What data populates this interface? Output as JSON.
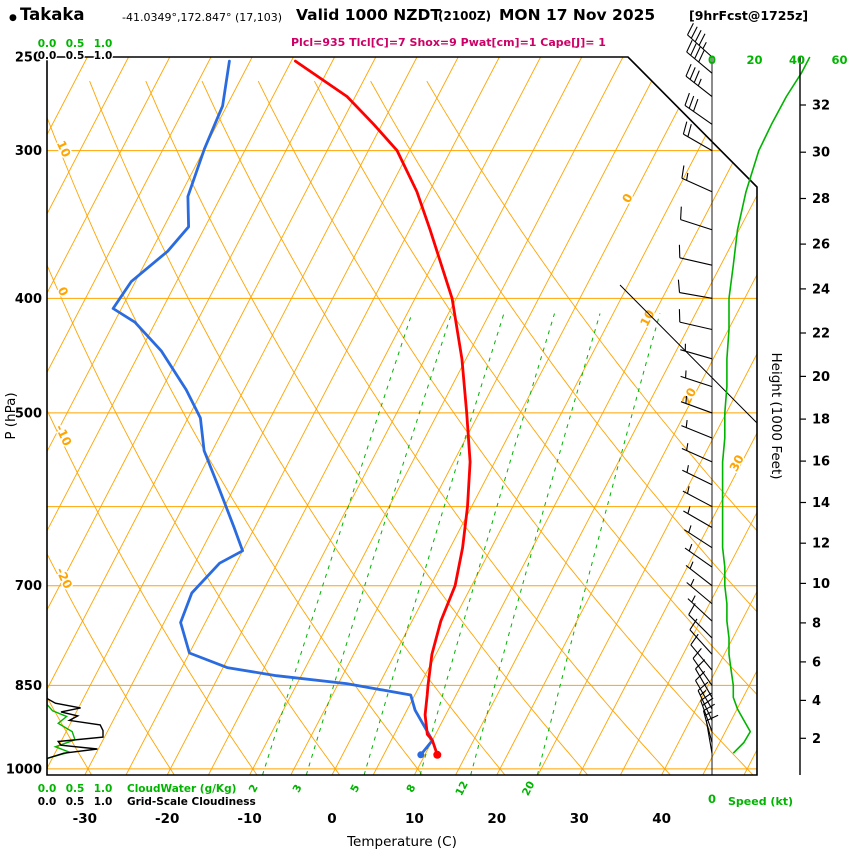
{
  "header": {
    "bullet": "●",
    "station": "Takaka",
    "coords": "-41.0349°,172.847° (17,103)",
    "valid_main": "Valid 1000 NZDT",
    "valid_z": "(2100Z)",
    "valid_date": "MON 17 Nov 2025",
    "valid_fcst": "[9hrFcst@1725z]",
    "params": "Plcl=935 Tlcl[C]=7 Shox=9 Pwat[cm]=1 Cape[J]= 1"
  },
  "colors": {
    "grid_orange": "#FFA400",
    "green": "#00B400",
    "temperature_red": "#FF0000",
    "dewpoint_blue": "#2B6BE0",
    "params_magenta": "#CC0066",
    "black": "#000000"
  },
  "chart_data": {
    "type": "skew_t_log_p_sounding",
    "axes": {
      "pressure_label": "P (hPa)",
      "pressure_ticks": [
        250,
        300,
        400,
        500,
        700,
        850,
        1000
      ],
      "pressure_range_hpa": [
        250,
        1012
      ],
      "isobar_lines_hpa": [
        300,
        400,
        500,
        600,
        700,
        850,
        1000
      ],
      "temperature_label": "Temperature (C)",
      "temperature_ticks_c": [
        -30,
        -20,
        -10,
        0,
        10,
        20,
        30,
        40
      ],
      "temperature_at_surface_range_c": [
        -34.6,
        51.6
      ],
      "skew_dx_per_dy": 0.52,
      "height_label": "Height (1000 Feet)",
      "height_ticks_kft": [
        2,
        4,
        6,
        8,
        10,
        12,
        14,
        16,
        18,
        20,
        22,
        24,
        26,
        28,
        30,
        32
      ],
      "speed_label": "Speed (kt)",
      "speed_ticks_kt": [
        0,
        20,
        40,
        60
      ],
      "speed_bottom_tick": "0",
      "cloud_scale_ticks": [
        "0.0",
        "0.5",
        "1.0"
      ],
      "cloudwater_label": "CloudWater (g/Kg)",
      "cloudiness_label": "Grid-Scale Cloudiness"
    },
    "grid": {
      "isotherm_step_c": 5,
      "isotherm_label_values": [
        0,
        10,
        20,
        30
      ],
      "dry_adiabat_values_c": [
        -30,
        -20,
        -10,
        0,
        10,
        20,
        30,
        40,
        50,
        60,
        70,
        80
      ],
      "dry_adiabat_label_values": [
        10,
        0,
        -10,
        -20
      ],
      "mixing_ratio_lines_gkg": [
        2,
        3,
        5,
        8,
        12,
        20
      ]
    },
    "temperature_profile_c": [
      [
        973,
        11.5
      ],
      [
        946,
        10
      ],
      [
        935,
        9
      ],
      [
        900,
        7.5
      ],
      [
        866,
        6.5
      ],
      [
        850,
        6
      ],
      [
        800,
        4.5
      ],
      [
        750,
        3.5
      ],
      [
        700,
        3
      ],
      [
        650,
        1.5
      ],
      [
        600,
        -0.5
      ],
      [
        550,
        -3
      ],
      [
        500,
        -6.5
      ],
      [
        450,
        -10.5
      ],
      [
        400,
        -15.5
      ],
      [
        350,
        -22.5
      ],
      [
        325,
        -26.5
      ],
      [
        300,
        -31.5
      ],
      [
        285,
        -36
      ],
      [
        270,
        -41
      ],
      [
        252,
        -49.5
      ]
    ],
    "dewpoint_profile_c": [
      [
        973,
        9.5
      ],
      [
        946,
        10
      ],
      [
        892,
        6
      ],
      [
        866,
        4.5
      ],
      [
        847,
        -4
      ],
      [
        834,
        -13
      ],
      [
        821,
        -19.5
      ],
      [
        798,
        -25
      ],
      [
        752,
        -28
      ],
      [
        710,
        -28.5
      ],
      [
        670,
        -27
      ],
      [
        654,
        -25
      ],
      [
        625,
        -27.5
      ],
      [
        577,
        -32
      ],
      [
        538,
        -36
      ],
      [
        505,
        -38.5
      ],
      [
        478,
        -42
      ],
      [
        443,
        -47.5
      ],
      [
        419,
        -52.5
      ],
      [
        408,
        -56
      ],
      [
        387,
        -55.5
      ],
      [
        365,
        -53
      ],
      [
        348,
        -52
      ],
      [
        328,
        -54
      ],
      [
        299,
        -55
      ],
      [
        275,
        -55.5
      ],
      [
        252,
        -57.5
      ]
    ],
    "wind_profile_kt": [
      [
        970,
        350,
        10
      ],
      [
        950,
        345,
        15
      ],
      [
        930,
        340,
        18
      ],
      [
        910,
        335,
        15
      ],
      [
        890,
        330,
        12
      ],
      [
        870,
        330,
        10
      ],
      [
        850,
        325,
        10
      ],
      [
        825,
        320,
        9
      ],
      [
        800,
        318,
        8
      ],
      [
        775,
        315,
        8
      ],
      [
        750,
        313,
        7
      ],
      [
        725,
        310,
        7
      ],
      [
        700,
        308,
        6
      ],
      [
        675,
        305,
        6
      ],
      [
        650,
        303,
        5
      ],
      [
        625,
        300,
        5
      ],
      [
        600,
        298,
        5
      ],
      [
        575,
        296,
        5
      ],
      [
        550,
        294,
        5
      ],
      [
        525,
        292,
        6
      ],
      [
        500,
        290,
        6
      ],
      [
        475,
        288,
        7
      ],
      [
        450,
        286,
        7
      ],
      [
        425,
        283,
        8
      ],
      [
        400,
        280,
        8
      ],
      [
        375,
        283,
        10
      ],
      [
        350,
        288,
        12
      ],
      [
        325,
        294,
        16
      ],
      [
        300,
        300,
        22
      ],
      [
        285,
        305,
        28
      ],
      [
        270,
        308,
        35
      ],
      [
        258,
        310,
        42
      ],
      [
        250,
        312,
        46
      ]
    ],
    "cloud_water_gkg": [
      [
        1000,
        0
      ],
      [
        980,
        0
      ],
      [
        968,
        0.4
      ],
      [
        958,
        0.15
      ],
      [
        945,
        0.5
      ],
      [
        930,
        0.45
      ],
      [
        915,
        0.2
      ],
      [
        903,
        0.35
      ],
      [
        893,
        0.1
      ],
      [
        882,
        0
      ],
      [
        870,
        0
      ]
    ],
    "cloudiness_fraction": [
      [
        1000,
        0
      ],
      [
        980,
        0
      ],
      [
        970,
        0.3
      ],
      [
        962,
        0.9
      ],
      [
        955,
        0.25
      ],
      [
        948,
        0.2
      ],
      [
        940,
        1.0
      ],
      [
        928,
        1.0
      ],
      [
        918,
        0.95
      ],
      [
        910,
        0.4
      ],
      [
        902,
        0.55
      ],
      [
        895,
        0.25
      ],
      [
        888,
        0.6
      ],
      [
        880,
        0.15
      ],
      [
        872,
        0
      ],
      [
        860,
        0
      ]
    ]
  }
}
